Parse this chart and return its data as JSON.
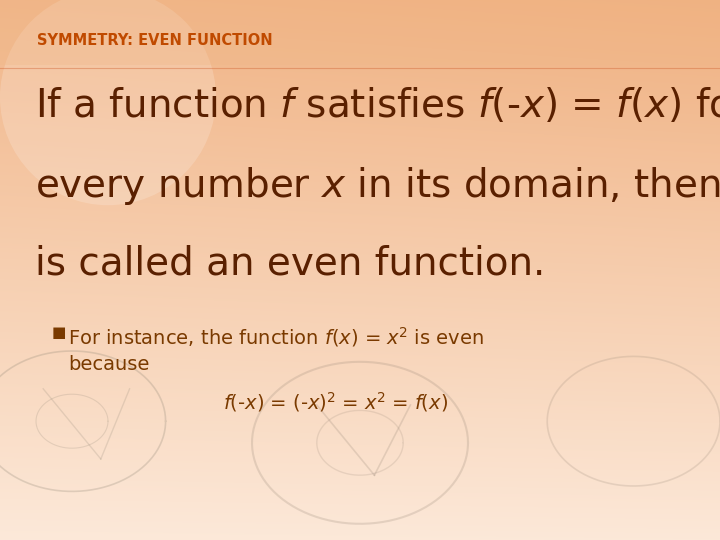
{
  "title_text": "SYMMETRY: EVEN FUNCTION",
  "title_color": "#c04a00",
  "title_fontsize": 10.5,
  "main_fontsize": 28,
  "main_color": "#5a2000",
  "bullet_color": "#7a3a00",
  "bullet_fontsize": 14,
  "bg_top": "#fce8d8",
  "bg_bottom": "#f0b888",
  "bg_mid": "#f5c8a8",
  "line1": "If a function $\\it{f}$ satisfies $\\it{f}$(-$\\it{x}$) = $\\it{f}$($\\it{x}$) for",
  "line2": "every number $\\it{x}$ in its domain, then $\\it{f}$",
  "line3": "is called an even function.",
  "bullet_marker": "■",
  "bullet_line1": "For instance, the function $\\it{f}$($\\it{x}$) = $\\it{x}$$^{2}$ is even",
  "bullet_line2": "because",
  "equation": "$\\it{f}$(-$\\it{x}$) = (-$\\it{x}$)$^{2}$ = $\\it{x}$$^{2}$ = $\\it{f}$($\\it{x}$)"
}
